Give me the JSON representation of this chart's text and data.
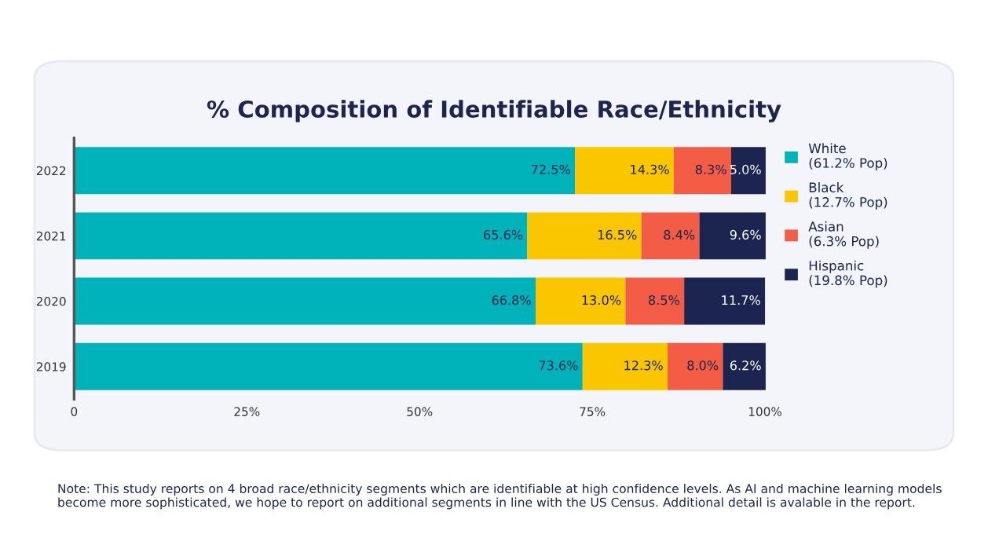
{
  "chart_data": {
    "type": "bar",
    "orientation": "horizontal",
    "stacked": true,
    "title": "% Composition of Identifiable Race/Ethnicity",
    "categories": [
      "2022",
      "2021",
      "2020",
      "2019"
    ],
    "series": [
      {
        "name": "White\n(61.2% Pop)",
        "color": "#00b2b9",
        "values": [
          72.5,
          65.6,
          66.8,
          73.6
        ],
        "value_labels": [
          "72.5%",
          "65.6%",
          "66.8%",
          "73.6%"
        ]
      },
      {
        "name": "Black\n(12.7% Pop)",
        "color": "#f9c600",
        "values": [
          14.3,
          16.5,
          13.0,
          12.3
        ],
        "value_labels": [
          "14.3%",
          "16.5%",
          "13.0%",
          "12.3%"
        ]
      },
      {
        "name": "Asian\n(6.3% Pop)",
        "color": "#f35d45",
        "values": [
          8.3,
          8.4,
          8.5,
          8.0
        ],
        "value_labels": [
          "8.3%",
          "8.4%",
          "8.5%",
          "8.0%"
        ]
      },
      {
        "name": "Hispanic\n(19.8% Pop)",
        "color": "#1b2550",
        "values": [
          5.0,
          9.6,
          11.7,
          6.2
        ],
        "value_labels": [
          "5.0%",
          "9.6%",
          "11.7%",
          "6.2%"
        ]
      }
    ],
    "xlim": [
      0,
      100.1
    ],
    "xticks": [
      0,
      {
        "value": 25,
        "label": "25%"
      },
      {
        "value": 50,
        "label": "50%"
      },
      {
        "value": 75,
        "label": "75%"
      },
      {
        "value": 100,
        "label": "100%"
      }
    ],
    "grid": false,
    "legend": "right",
    "annotations": [
      "Note: This study reports on 4 broad race/ethnicity segments which are identifiable at high confidence levels. As AI and machine learning models become more sophisticated, we hope to report on additional segments in line with the US Census. Additional detail is avalable in the report."
    ]
  }
}
